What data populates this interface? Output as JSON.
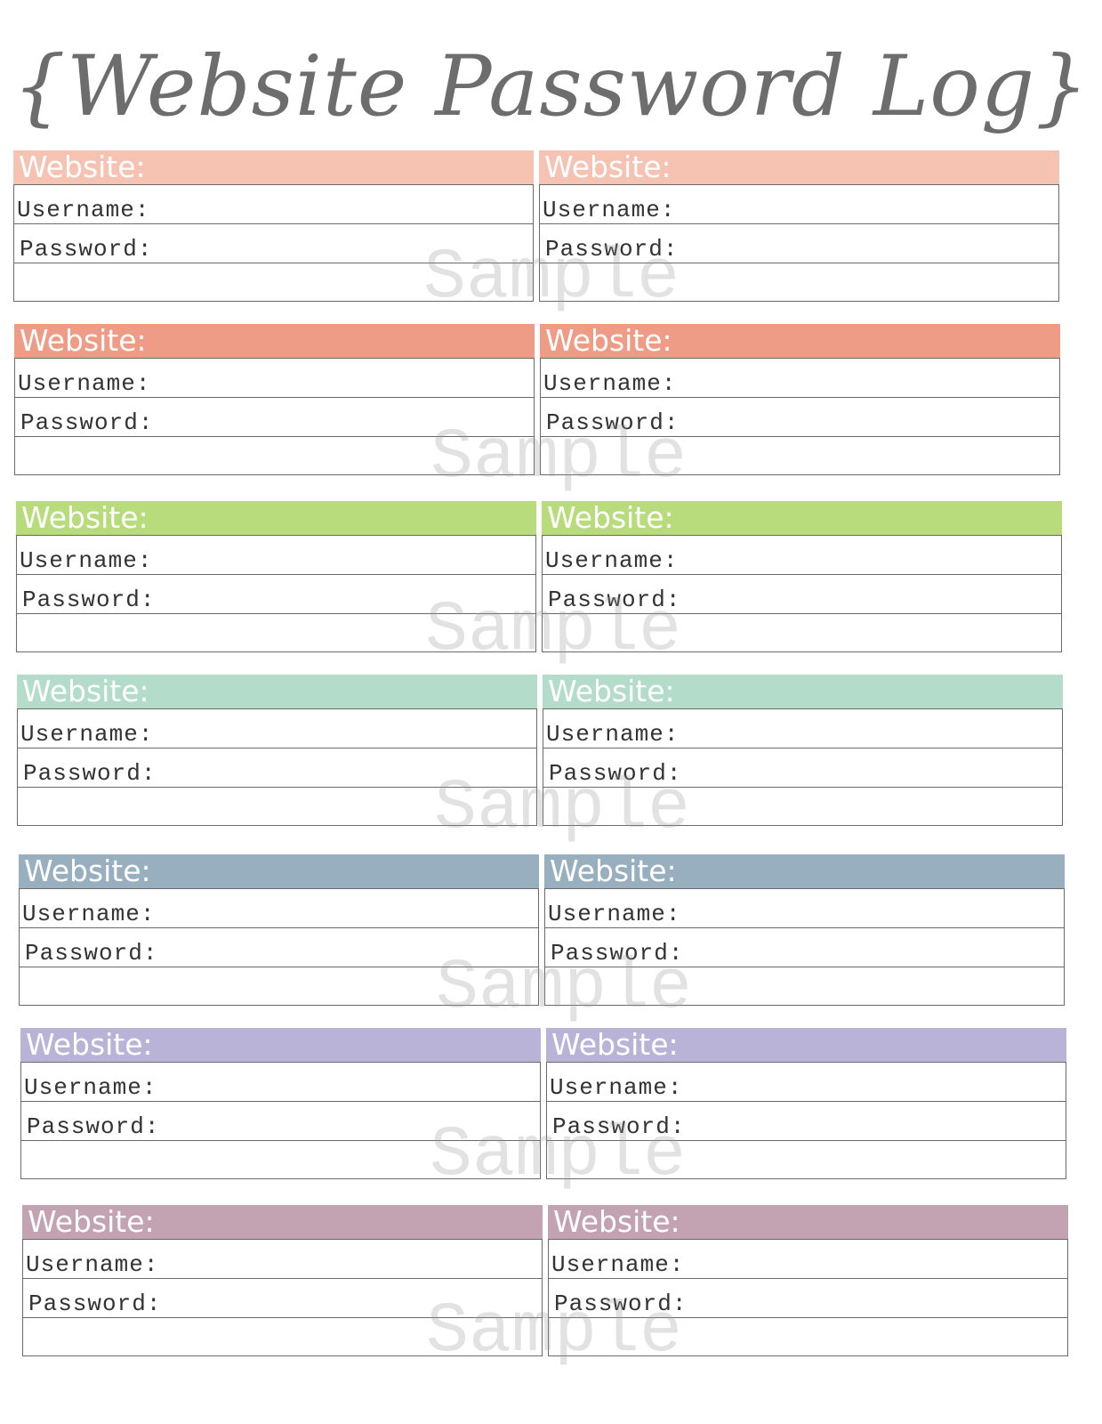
{
  "title": "{Website Password Log}",
  "labels": {
    "website": "Website:",
    "username": "Username:",
    "password": "Password:"
  },
  "watermark": "Sample",
  "row_colors": [
    "#f6c3b3",
    "#ef9c86",
    "#b8dc7c",
    "#b4dccb",
    "#97afbf",
    "#b9b3d7",
    "#c3a3b1"
  ]
}
